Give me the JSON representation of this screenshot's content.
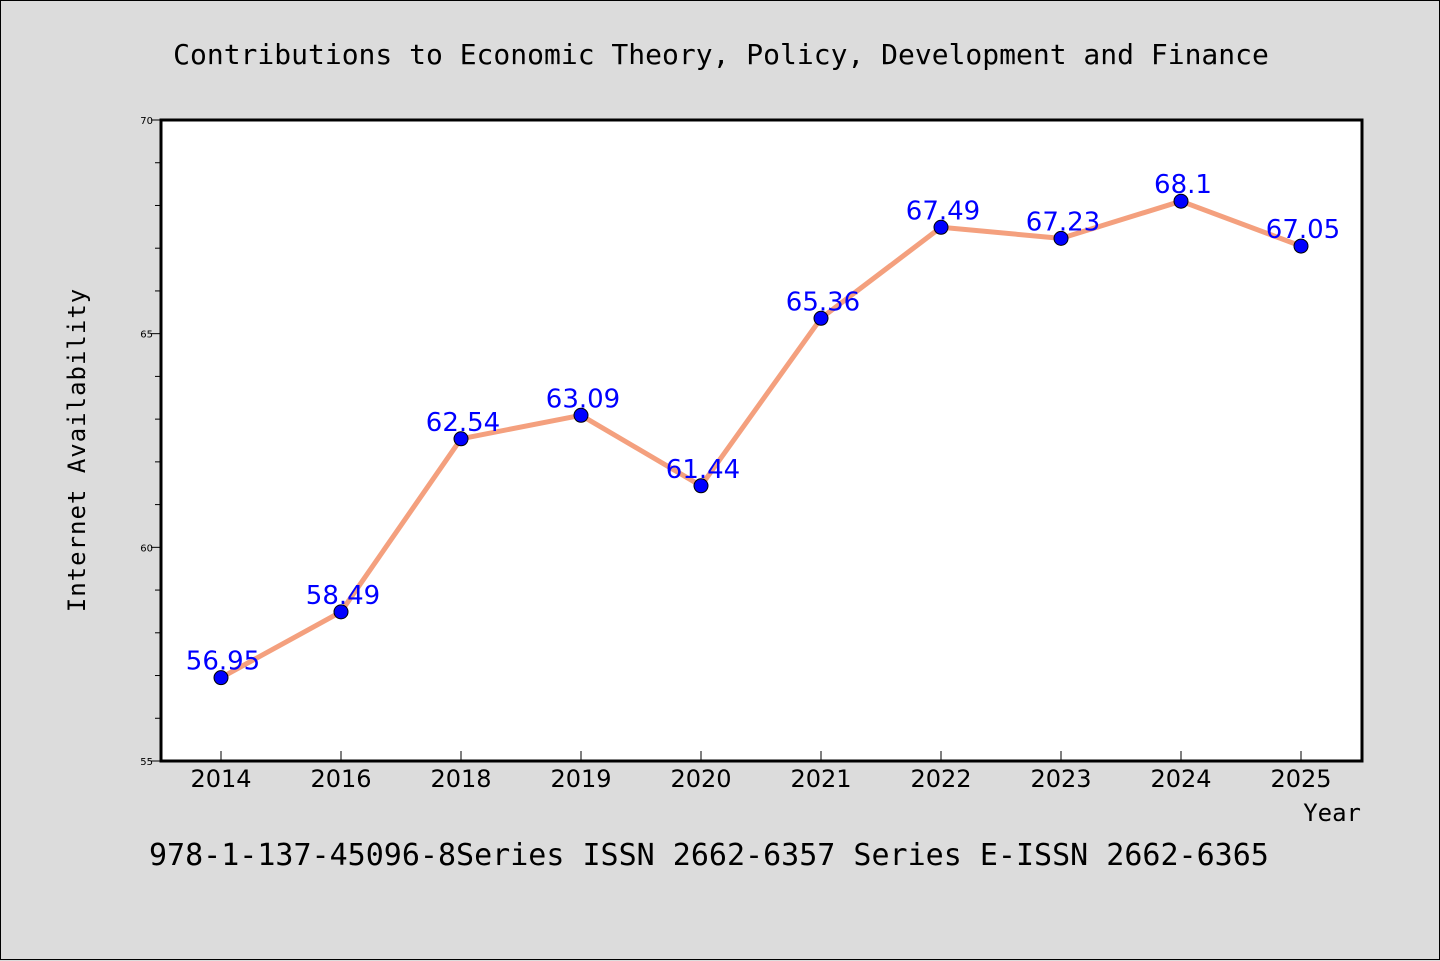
{
  "chart_data": {
    "type": "line",
    "title": "Contributions to Economic Theory, Policy, Development and Finance",
    "footer": "978-1-137-45096-8Series ISSN 2662-6357 Series E-ISSN 2662-6365",
    "xlabel": "Year",
    "ylabel": "Internet Availability",
    "categories": [
      "2014",
      "2016",
      "2018",
      "2019",
      "2020",
      "2021",
      "2022",
      "2023",
      "2024",
      "2025"
    ],
    "values": [
      56.95,
      58.49,
      62.54,
      63.09,
      61.44,
      65.36,
      67.49,
      67.23,
      68.1,
      67.05
    ],
    "point_labels": [
      "56.95",
      "58.49",
      "62.54",
      "63.09",
      "61.44",
      "65.36",
      "67.49",
      "67.23",
      "68.1",
      "67.05"
    ],
    "ylim": [
      55,
      70
    ],
    "yticks": [
      "55",
      "60",
      "65",
      "70"
    ],
    "grid": false,
    "colors": {
      "line": "#f4a07e",
      "marker": "#0000ff",
      "label": "#0000ff",
      "background": "#dcdcdc",
      "plot_area": "#ffffff"
    }
  }
}
